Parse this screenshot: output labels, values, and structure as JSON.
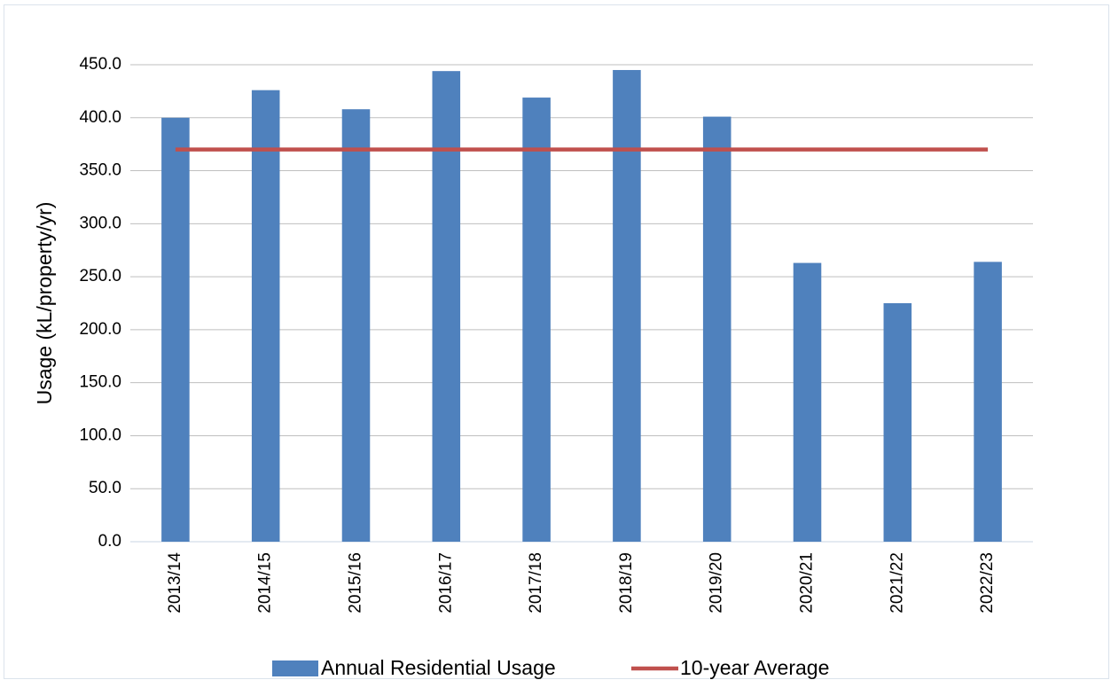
{
  "chart_data": {
    "type": "bar",
    "y_label": "Usage (kL/property/yr)",
    "categories": [
      "2013/14",
      "2014/15",
      "2015/16",
      "2016/17",
      "2017/18",
      "2018/19",
      "2019/20",
      "2020/21",
      "2021/22",
      "2022/23"
    ],
    "series": [
      {
        "name": "Annual Residential Usage",
        "type": "bar",
        "color": "#4f81bd",
        "values": [
          400,
          426,
          408,
          444,
          419,
          445,
          401,
          263,
          225,
          264
        ]
      },
      {
        "name": "10-year Average",
        "type": "line",
        "color": "#c0504d",
        "values": [
          370,
          370,
          370,
          370,
          370,
          370,
          370,
          370,
          370,
          370
        ]
      }
    ],
    "ylim": [
      0,
      450
    ],
    "yticks": [
      {
        "value": 0,
        "label": "0.0"
      },
      {
        "value": 50,
        "label": "50.0"
      },
      {
        "value": 100,
        "label": "100.0"
      },
      {
        "value": 150,
        "label": "150.0"
      },
      {
        "value": 200,
        "label": "200.0"
      },
      {
        "value": 250,
        "label": "250.0"
      },
      {
        "value": 300,
        "label": "300.0"
      },
      {
        "value": 350,
        "label": "350.0"
      },
      {
        "value": 400,
        "label": "400.0"
      },
      {
        "value": 450,
        "label": "450.0"
      }
    ],
    "grid": true,
    "legend": "bottom"
  }
}
